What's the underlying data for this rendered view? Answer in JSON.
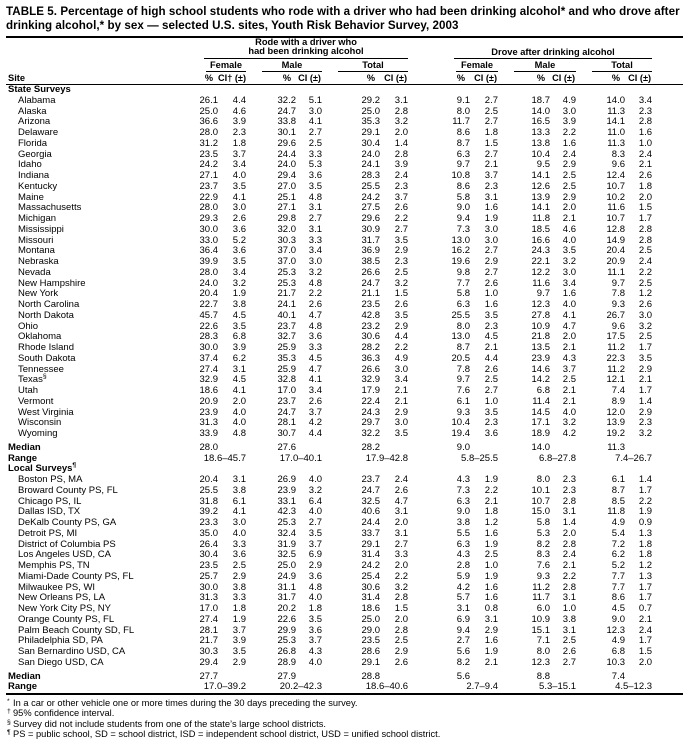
{
  "title": "TABLE 5. Percentage of high school students who rode with a driver who had been drinking alcohol* and who drove after drinking alcohol,* by sex — selected U.S. sites, Youth Risk Behavior Survey, 2003",
  "header": {
    "site_label": "Site",
    "group1_line1": "Rode with a driver who",
    "group1_line2": "had been drinking alcohol",
    "group2": "Drove after drinking alcohol",
    "female": "Female",
    "male": "Male",
    "total": "Total",
    "pct": "%",
    "ci_dagger": "CI† (±)",
    "ci": "CI (±)"
  },
  "table": {
    "sections": [
      {
        "label": "State Surveys",
        "median_label": "Median",
        "range_label": "Range",
        "rows": [
          {
            "site": "Alabama",
            "values": [
              "26.1",
              "4.4",
              "32.2",
              "5.1",
              "29.2",
              "3.1",
              "9.1",
              "2.7",
              "18.7",
              "4.9",
              "14.0",
              "3.4"
            ]
          },
          {
            "site": "Alaska",
            "values": [
              "25.0",
              "4.6",
              "24.7",
              "3.0",
              "25.0",
              "2.8",
              "8.0",
              "2.5",
              "14.0",
              "3.0",
              "11.3",
              "2.3"
            ]
          },
          {
            "site": "Arizona",
            "values": [
              "36.6",
              "3.9",
              "33.8",
              "4.1",
              "35.3",
              "3.2",
              "11.7",
              "2.7",
              "16.5",
              "3.9",
              "14.1",
              "2.8"
            ]
          },
          {
            "site": "Delaware",
            "values": [
              "28.0",
              "2.3",
              "30.1",
              "2.7",
              "29.1",
              "2.0",
              "8.6",
              "1.8",
              "13.3",
              "2.2",
              "11.0",
              "1.6"
            ]
          },
          {
            "site": "Florida",
            "values": [
              "31.2",
              "1.8",
              "29.6",
              "2.5",
              "30.4",
              "1.4",
              "8.7",
              "1.5",
              "13.8",
              "1.6",
              "11.3",
              "1.0"
            ]
          },
          {
            "site": "Georgia",
            "values": [
              "23.5",
              "3.7",
              "24.4",
              "3.3",
              "24.0",
              "2.8",
              "6.3",
              "2.7",
              "10.4",
              "2.4",
              "8.3",
              "2.4"
            ]
          },
          {
            "site": "Idaho",
            "values": [
              "24.2",
              "3.4",
              "24.0",
              "5.3",
              "24.1",
              "3.9",
              "9.7",
              "2.1",
              "9.5",
              "2.9",
              "9.6",
              "2.1"
            ]
          },
          {
            "site": "Indiana",
            "values": [
              "27.1",
              "4.0",
              "29.4",
              "3.6",
              "28.3",
              "2.4",
              "10.8",
              "3.7",
              "14.1",
              "2.5",
              "12.4",
              "2.6"
            ]
          },
          {
            "site": "Kentucky",
            "values": [
              "23.7",
              "3.5",
              "27.0",
              "3.5",
              "25.5",
              "2.3",
              "8.6",
              "2.3",
              "12.6",
              "2.5",
              "10.7",
              "1.8"
            ]
          },
          {
            "site": "Maine",
            "values": [
              "22.9",
              "4.1",
              "25.1",
              "4.8",
              "24.2",
              "3.7",
              "5.8",
              "3.1",
              "13.9",
              "2.9",
              "10.2",
              "2.0"
            ]
          },
          {
            "site": "Massachusetts",
            "values": [
              "28.0",
              "3.0",
              "27.1",
              "3.1",
              "27.5",
              "2.6",
              "9.0",
              "1.6",
              "14.1",
              "2.0",
              "11.6",
              "1.5"
            ]
          },
          {
            "site": "Michigan",
            "values": [
              "29.3",
              "2.6",
              "29.8",
              "2.7",
              "29.6",
              "2.2",
              "9.4",
              "1.9",
              "11.8",
              "2.1",
              "10.7",
              "1.7"
            ]
          },
          {
            "site": "Mississippi",
            "values": [
              "30.0",
              "3.6",
              "32.0",
              "3.1",
              "30.9",
              "2.7",
              "7.3",
              "3.0",
              "18.5",
              "4.6",
              "12.8",
              "2.8"
            ]
          },
          {
            "site": "Missouri",
            "values": [
              "33.0",
              "5.2",
              "30.3",
              "3.3",
              "31.7",
              "3.5",
              "13.0",
              "3.0",
              "16.6",
              "4.0",
              "14.9",
              "2.8"
            ]
          },
          {
            "site": "Montana",
            "values": [
              "36.4",
              "3.6",
              "37.0",
              "3.4",
              "36.9",
              "2.9",
              "16.2",
              "2.7",
              "24.3",
              "3.5",
              "20.4",
              "2.5"
            ]
          },
          {
            "site": "Nebraska",
            "values": [
              "39.9",
              "3.5",
              "37.0",
              "3.0",
              "38.5",
              "2.3",
              "19.6",
              "2.9",
              "22.1",
              "3.2",
              "20.9",
              "2.4"
            ]
          },
          {
            "site": "Nevada",
            "values": [
              "28.0",
              "3.4",
              "25.3",
              "3.2",
              "26.6",
              "2.5",
              "9.8",
              "2.7",
              "12.2",
              "3.0",
              "11.1",
              "2.2"
            ]
          },
          {
            "site": "New Hampshire",
            "values": [
              "24.0",
              "3.2",
              "25.3",
              "4.8",
              "24.7",
              "3.2",
              "7.7",
              "2.6",
              "11.6",
              "3.4",
              "9.7",
              "2.5"
            ]
          },
          {
            "site": "New York",
            "values": [
              "20.4",
              "1.9",
              "21.7",
              "2.2",
              "21.1",
              "1.5",
              "5.8",
              "1.0",
              "9.7",
              "1.6",
              "7.8",
              "1.2"
            ]
          },
          {
            "site": "North Carolina",
            "values": [
              "22.7",
              "3.8",
              "24.1",
              "2.6",
              "23.5",
              "2.6",
              "6.3",
              "1.6",
              "12.3",
              "4.0",
              "9.3",
              "2.6"
            ]
          },
          {
            "site": "North Dakota",
            "values": [
              "45.7",
              "4.5",
              "40.1",
              "4.7",
              "42.8",
              "3.5",
              "25.5",
              "3.5",
              "27.8",
              "4.1",
              "26.7",
              "3.0"
            ]
          },
          {
            "site": "Ohio",
            "values": [
              "22.6",
              "3.5",
              "23.7",
              "4.8",
              "23.2",
              "2.9",
              "8.0",
              "2.3",
              "10.9",
              "4.7",
              "9.6",
              "3.2"
            ]
          },
          {
            "site": "Oklahoma",
            "values": [
              "28.3",
              "6.8",
              "32.7",
              "3.6",
              "30.6",
              "4.4",
              "13.0",
              "4.5",
              "21.8",
              "2.0",
              "17.5",
              "2.5"
            ]
          },
          {
            "site": "Rhode Island",
            "values": [
              "30.0",
              "3.9",
              "25.9",
              "3.3",
              "28.2",
              "2.2",
              "8.7",
              "2.1",
              "13.5",
              "2.1",
              "11.2",
              "1.7"
            ]
          },
          {
            "site": "South Dakota",
            "values": [
              "37.4",
              "6.2",
              "35.3",
              "4.5",
              "36.3",
              "4.9",
              "20.5",
              "4.4",
              "23.9",
              "4.3",
              "22.3",
              "3.5"
            ]
          },
          {
            "site": "Tennessee",
            "values": [
              "27.4",
              "3.1",
              "25.9",
              "4.7",
              "26.6",
              "3.0",
              "7.8",
              "2.6",
              "14.6",
              "3.7",
              "11.2",
              "2.9"
            ]
          },
          {
            "site": "Texas",
            "site_sup": "§",
            "values": [
              "32.9",
              "4.5",
              "32.8",
              "4.1",
              "32.9",
              "3.4",
              "9.7",
              "2.5",
              "14.2",
              "2.5",
              "12.1",
              "2.1"
            ]
          },
          {
            "site": "Utah",
            "values": [
              "18.6",
              "4.1",
              "17.0",
              "3.4",
              "17.9",
              "2.1",
              "7.6",
              "2.7",
              "6.8",
              "2.1",
              "7.4",
              "1.7"
            ]
          },
          {
            "site": "Vermont",
            "values": [
              "20.9",
              "2.0",
              "23.7",
              "2.6",
              "22.4",
              "2.1",
              "6.1",
              "1.0",
              "11.4",
              "2.1",
              "8.9",
              "1.4"
            ]
          },
          {
            "site": "West Virginia",
            "values": [
              "23.9",
              "4.0",
              "24.7",
              "3.7",
              "24.3",
              "2.9",
              "9.3",
              "3.5",
              "14.5",
              "4.0",
              "12.0",
              "2.9"
            ]
          },
          {
            "site": "Wisconsin",
            "values": [
              "31.3",
              "4.0",
              "28.1",
              "4.2",
              "29.7",
              "3.0",
              "10.4",
              "2.3",
              "17.1",
              "3.2",
              "13.9",
              "2.3"
            ]
          },
          {
            "site": "Wyoming",
            "values": [
              "33.9",
              "4.8",
              "30.7",
              "4.4",
              "32.2",
              "3.5",
              "19.4",
              "3.6",
              "18.9",
              "4.2",
              "19.2",
              "3.2"
            ]
          }
        ],
        "median": [
          "28.0",
          "27.6",
          "28.2",
          "9.0",
          "14.0",
          "11.3"
        ],
        "range": [
          "18.6–45.7",
          "17.0–40.1",
          "17.9–42.8",
          "5.8–25.5",
          "6.8–27.8",
          "7.4–26.7"
        ]
      },
      {
        "label": "Local Surveys",
        "label_sup": "¶",
        "median_label": "Median",
        "range_label": "Range",
        "rows": [
          {
            "site": "Boston PS, MA",
            "values": [
              "20.4",
              "3.1",
              "26.9",
              "4.0",
              "23.7",
              "2.4",
              "4.3",
              "1.9",
              "8.0",
              "2.3",
              "6.1",
              "1.4"
            ]
          },
          {
            "site": "Broward County PS, FL",
            "values": [
              "25.5",
              "3.8",
              "23.9",
              "3.2",
              "24.7",
              "2.6",
              "7.3",
              "2.2",
              "10.1",
              "2.3",
              "8.7",
              "1.7"
            ]
          },
          {
            "site": "Chicago PS, IL",
            "values": [
              "31.8",
              "6.1",
              "33.1",
              "6.4",
              "32.5",
              "4.7",
              "6.3",
              "2.1",
              "10.7",
              "2.8",
              "8.5",
              "2.2"
            ]
          },
          {
            "site": "Dallas ISD, TX",
            "values": [
              "39.2",
              "4.1",
              "42.3",
              "4.0",
              "40.6",
              "3.1",
              "9.0",
              "1.8",
              "15.0",
              "3.1",
              "11.8",
              "1.9"
            ]
          },
          {
            "site": "DeKalb County PS, GA",
            "values": [
              "23.3",
              "3.0",
              "25.3",
              "2.7",
              "24.4",
              "2.0",
              "3.8",
              "1.2",
              "5.8",
              "1.4",
              "4.9",
              "0.9"
            ]
          },
          {
            "site": "Detroit PS, MI",
            "values": [
              "35.0",
              "4.0",
              "32.4",
              "3.5",
              "33.7",
              "3.1",
              "5.5",
              "1.6",
              "5.3",
              "2.0",
              "5.4",
              "1.3"
            ]
          },
          {
            "site": "District of Columbia PS",
            "values": [
              "26.4",
              "3.3",
              "31.9",
              "3.7",
              "29.1",
              "2.7",
              "6.3",
              "1.9",
              "8.2",
              "2.8",
              "7.2",
              "1.8"
            ]
          },
          {
            "site": "Los Angeles USD, CA",
            "values": [
              "30.4",
              "3.6",
              "32.5",
              "6.9",
              "31.4",
              "3.3",
              "4.3",
              "2.5",
              "8.3",
              "2.4",
              "6.2",
              "1.8"
            ]
          },
          {
            "site": "Memphis PS, TN",
            "values": [
              "23.5",
              "2.5",
              "25.0",
              "2.9",
              "24.2",
              "2.0",
              "2.8",
              "1.0",
              "7.6",
              "2.1",
              "5.2",
              "1.2"
            ]
          },
          {
            "site": "Miami-Dade County PS, FL",
            "values": [
              "25.7",
              "2.9",
              "24.9",
              "3.6",
              "25.4",
              "2.2",
              "5.9",
              "1.9",
              "9.3",
              "2.2",
              "7.7",
              "1.3"
            ]
          },
          {
            "site": "Milwaukee PS, WI",
            "values": [
              "30.0",
              "3.8",
              "31.1",
              "4.8",
              "30.6",
              "3.2",
              "4.2",
              "1.6",
              "11.2",
              "2.8",
              "7.7",
              "1.7"
            ]
          },
          {
            "site": "New Orleans PS, LA",
            "values": [
              "31.3",
              "3.3",
              "31.7",
              "4.0",
              "31.4",
              "2.8",
              "5.7",
              "1.6",
              "11.7",
              "3.1",
              "8.6",
              "1.7"
            ]
          },
          {
            "site": "New York City PS, NY",
            "values": [
              "17.0",
              "1.8",
              "20.2",
              "1.8",
              "18.6",
              "1.5",
              "3.1",
              "0.8",
              "6.0",
              "1.0",
              "4.5",
              "0.7"
            ]
          },
          {
            "site": "Orange County PS, FL",
            "values": [
              "27.4",
              "1.9",
              "22.6",
              "3.5",
              "25.0",
              "2.0",
              "6.9",
              "3.1",
              "10.9",
              "3.8",
              "9.0",
              "2.1"
            ]
          },
          {
            "site": "Palm Beach County SD, FL",
            "values": [
              "28.1",
              "3.7",
              "29.9",
              "3.6",
              "29.0",
              "2.8",
              "9.4",
              "2.9",
              "15.1",
              "3.1",
              "12.3",
              "2.4"
            ]
          },
          {
            "site": "Philadelphia SD, PA",
            "values": [
              "21.7",
              "3.9",
              "25.3",
              "3.7",
              "23.5",
              "2.5",
              "2.7",
              "1.6",
              "7.1",
              "2.5",
              "4.9",
              "1.7"
            ]
          },
          {
            "site": "San Bernardino USD, CA",
            "values": [
              "30.3",
              "3.5",
              "26.8",
              "4.3",
              "28.6",
              "2.9",
              "5.6",
              "1.9",
              "8.0",
              "2.6",
              "6.8",
              "1.5"
            ]
          },
          {
            "site": "San Diego USD, CA",
            "values": [
              "29.4",
              "2.9",
              "28.9",
              "4.0",
              "29.1",
              "2.6",
              "8.2",
              "2.1",
              "12.3",
              "2.7",
              "10.3",
              "2.0"
            ]
          }
        ],
        "median": [
          "27.7",
          "27.9",
          "28.8",
          "5.6",
          "8.8",
          "7.4"
        ],
        "range": [
          "17.0–39.2",
          "20.2–42.3",
          "18.6–40.6",
          "2.7–9.4",
          "5.3–15.1",
          "4.5–12.3"
        ]
      }
    ]
  },
  "footnotes": [
    {
      "mark": "*",
      "text": "In a car or other vehicle one or more times during the 30 days preceding the survey."
    },
    {
      "mark": "†",
      "text": "95% confidence interval."
    },
    {
      "mark": "§",
      "text": "Survey did not include students from one of the state’s large school districts."
    },
    {
      "mark": "¶",
      "text": "PS = public school, SD = school district, ISD = independent school district, USD = unified school district."
    }
  ]
}
